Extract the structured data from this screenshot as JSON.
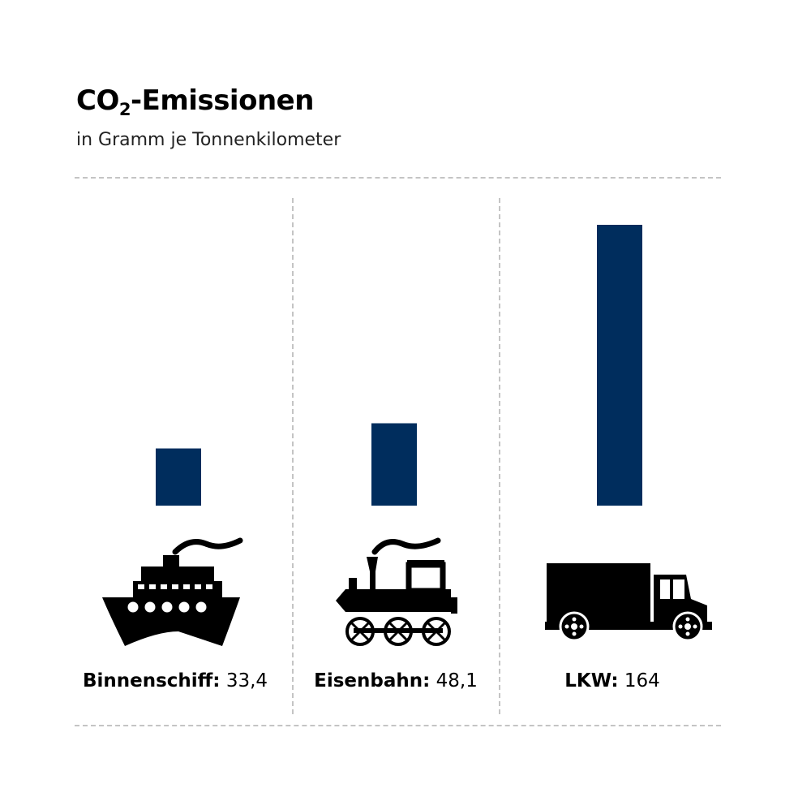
{
  "title": {
    "main": "CO",
    "subscript": "2",
    "rest": "-Emissionen"
  },
  "subtitle": "in Gramm je Tonnenkilometer",
  "colors": {
    "bar": "#002d5d",
    "divider": "#c4c4c4",
    "icon": "#000000"
  },
  "chart_data": {
    "type": "bar",
    "title": "CO2-Emissionen",
    "subtitle": "in Gramm je Tonnenkilometer",
    "categories": [
      "Binnenschiff",
      "Eisenbahn",
      "LKW"
    ],
    "values": [
      33.4,
      48.1,
      164
    ],
    "value_labels": [
      "33,4",
      "48,1",
      "164"
    ],
    "ylim": [
      0,
      164
    ],
    "grid": false,
    "legend": "none"
  },
  "labels": [
    {
      "name": "Binnenschiff:",
      "value": "33,4",
      "icon": "ship-icon"
    },
    {
      "name": "Eisenbahn:",
      "value": "48,1",
      "icon": "train-icon"
    },
    {
      "name": "LKW:",
      "value": "164",
      "icon": "truck-icon"
    }
  ]
}
